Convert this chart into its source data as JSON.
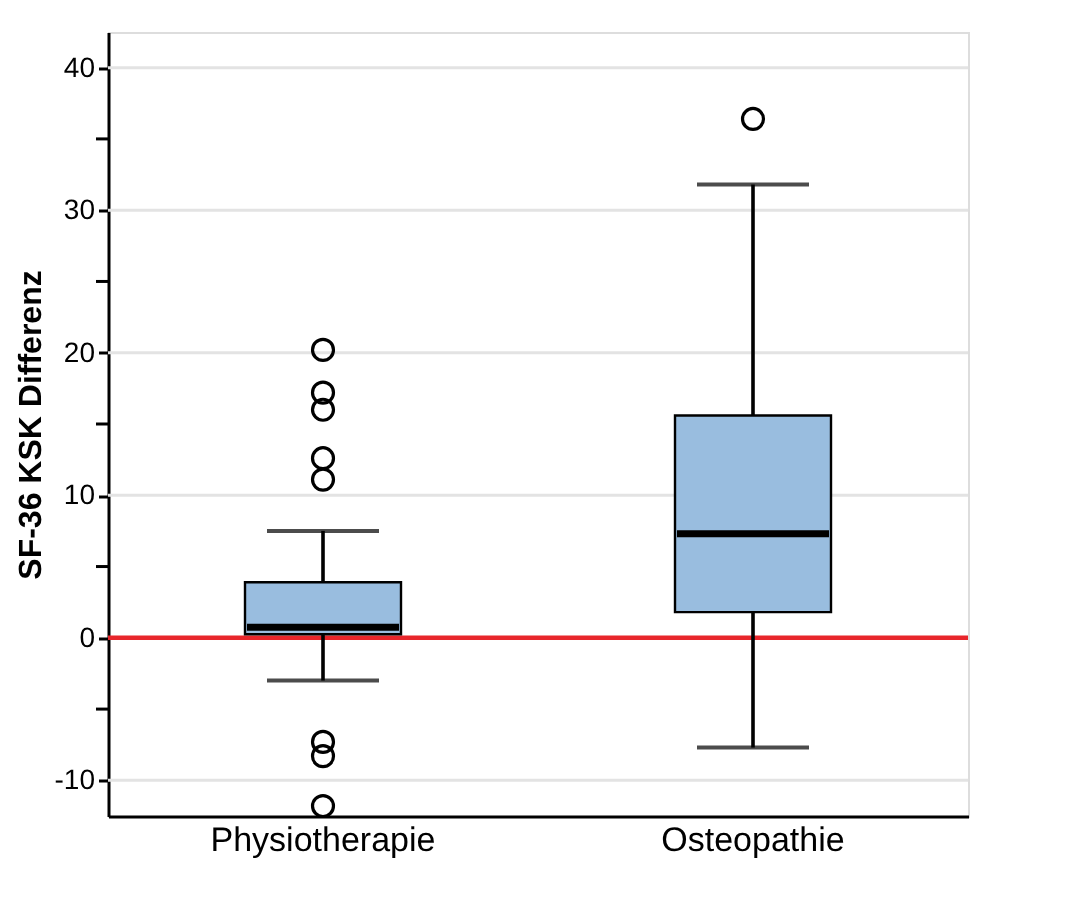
{
  "chart_data": {
    "type": "box",
    "ylabel": "SF-36 KSK Differenz",
    "categories": [
      "Physiotherapie",
      "Osteopathie"
    ],
    "series": [
      {
        "color": "#99bddf",
        "boxes": [
          {
            "low": -3.0,
            "q1": 0.25,
            "median": 0.75,
            "q3": 3.9,
            "high": 7.5,
            "outliers": [
              20.2,
              17.2,
              16.0,
              12.6,
              11.1,
              -7.3,
              -8.3,
              -11.8
            ]
          },
          {
            "low": -7.7,
            "q1": 1.8,
            "median": 7.3,
            "q3": 15.6,
            "high": 31.8,
            "outliers": [
              36.4
            ]
          }
        ]
      }
    ],
    "ylim": [
      -12.5,
      42.5
    ],
    "yticks": [
      -10,
      {
        "value": -5,
        "label": null
      },
      0,
      {
        "value": 5,
        "label": null
      },
      10,
      {
        "value": 15,
        "label": null
      },
      20,
      {
        "value": 25,
        "label": null
      },
      30,
      {
        "value": 35,
        "label": null
      },
      40
    ],
    "grid": "y",
    "ref_lines": [
      {
        "axis": "y",
        "value": 0,
        "color": "#e8262b"
      }
    ]
  }
}
